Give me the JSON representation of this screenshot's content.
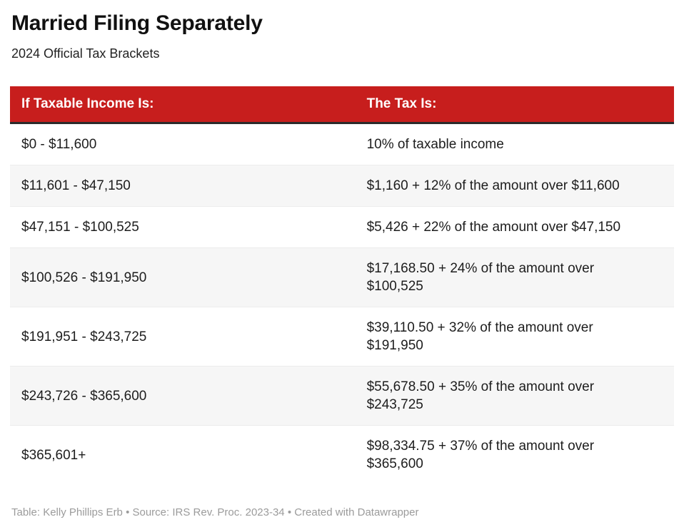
{
  "chart_data": {
    "type": "table",
    "title": "Married Filing Separately",
    "subtitle": "2024 Official Tax Brackets",
    "columns": [
      "If Taxable Income Is:",
      "The Tax Is:"
    ],
    "rows": [
      [
        "$0 - $11,600",
        "10% of taxable income"
      ],
      [
        "$11,601 - $47,150",
        "$1,160 + 12% of the amount over $11,600"
      ],
      [
        "$47,151 - $100,525",
        "$5,426 + 22% of the amount over $47,150"
      ],
      [
        "$100,526 - $191,950",
        "$17,168.50 + 24% of the amount over $100,525"
      ],
      [
        "$191,951 - $243,725",
        "$39,110.50 + 32% of the amount over $191,950"
      ],
      [
        "$243,726 - $365,600",
        "$55,678.50 + 35% of the amount over $243,725"
      ],
      [
        "$365,601+",
        "$98,334.75 + 37% of the amount over $365,600"
      ]
    ],
    "footer_note": "Table: Kelly Phillips Erb • Source: IRS Rev. Proc. 2023-34 • Created with Datawrapper",
    "layout_hints": {
      "zebra_striping": true,
      "header_style": "solid-red-band",
      "grid": "horizontal-separators-only"
    }
  },
  "colors": {
    "header_bg": "#c71e1d",
    "header_text": "#ffffff",
    "header_border": "#2b2b2b",
    "row_alt_bg": "#f6f6f6",
    "row_separator": "#ececec",
    "body_text": "#1d1d1d",
    "footer_text": "#9b9b9b"
  }
}
